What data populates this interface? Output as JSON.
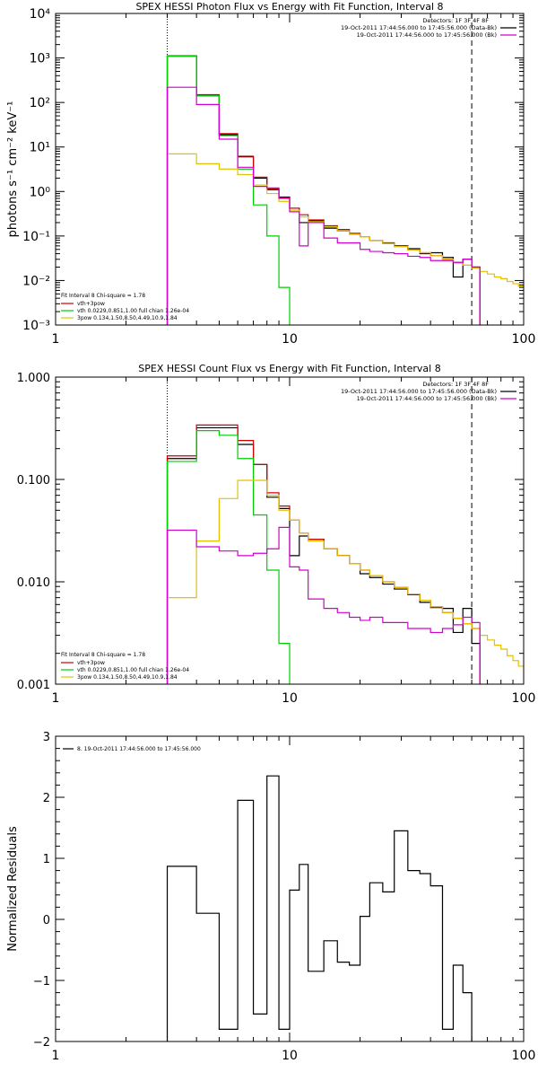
{
  "colors": {
    "black": "#000000",
    "red": "#d00000",
    "green": "#00cc00",
    "yellow": "#e6c000",
    "magenta": "#d000d0"
  },
  "chart_data": [
    {
      "type": "line",
      "title": "SPEX HESSI Photon Flux vs Energy with Fit Function, Interval 8",
      "ylabel": "photons s⁻¹ cm⁻² keV⁻¹",
      "xlabel": "",
      "xscale": "log",
      "yscale": "log",
      "xlim": [
        1,
        100
      ],
      "ylim": [
        0.001,
        10000
      ],
      "xticks": [
        1,
        10,
        100
      ],
      "xtick_labels": [
        "1",
        "10",
        "100"
      ],
      "yticks": [
        0.001,
        0.01,
        0.1,
        1,
        10,
        100,
        1000,
        10000
      ],
      "ytick_labels": [
        "10⁻³",
        "10⁻²",
        "10⁻¹",
        "10⁰",
        "10¹",
        "10²",
        "10³",
        "10⁴"
      ],
      "vlines": [
        {
          "x": 3,
          "style": "dotted"
        },
        {
          "x": 60,
          "style": "dashed"
        }
      ],
      "legend_top": {
        "lines": [
          "Detectors: 1F 3F 4F 8F",
          "19-Oct-2011 17:44:56.000 to 17:45:56.000 (Data-Bk)",
          "19-Oct-2011 17:44:56.000 to 17:45:56.000 (Bk)"
        ],
        "colors": [
          "",
          "#000000",
          "#d000d0"
        ]
      },
      "legend_bottom": {
        "header": "Fit Interval  8    Chi-square = 1.78",
        "items": [
          {
            "label": "vth+3pow",
            "color": "#d00000"
          },
          {
            "label": "vth 0.0229,0.851,1.00  full chian 1.26e-04",
            "color": "#00cc00"
          },
          {
            "label": "3pow 0.134,1.50,8.50,4.49,10.9,1.84",
            "color": "#e6c000"
          }
        ]
      },
      "edges": [
        3,
        4,
        5,
        6,
        7,
        8,
        9,
        10,
        11,
        12,
        14,
        16,
        18,
        20,
        22,
        25,
        28,
        32,
        36,
        40,
        45,
        50,
        55,
        60,
        65,
        70,
        75,
        80,
        85,
        90,
        95,
        100
      ],
      "series": [
        {
          "name": "Data-Bk",
          "color": "#000000",
          "stop_at": 60,
          "floor_at_end": true,
          "values": [
            1100,
            140,
            19,
            6.0,
            2.0,
            1.1,
            0.75,
            0.42,
            0.2,
            0.22,
            0.15,
            0.13,
            0.11,
            0.095,
            0.08,
            0.07,
            0.06,
            0.052,
            0.04,
            0.042,
            0.033,
            0.012,
            0.03,
            0.02
          ]
        },
        {
          "name": "vth+3pow",
          "color": "#d00000",
          "stop_at": 60,
          "floor_at_end": true,
          "values": [
            1120,
            150,
            20,
            6.2,
            2.1,
            1.15,
            0.72,
            0.42,
            0.3,
            0.23,
            0.17,
            0.14,
            0.115,
            0.095,
            0.08,
            0.068,
            0.058,
            0.049,
            0.042,
            0.036,
            0.03,
            0.026,
            0.022,
            0.02
          ]
        },
        {
          "name": "vth",
          "color": "#00cc00",
          "stop_at": 10,
          "values": [
            1100,
            140,
            18,
            3.2,
            0.5,
            0.1,
            0.007,
            0.0001
          ]
        },
        {
          "name": "3pow",
          "color": "#e6c000",
          "stop_at": 100,
          "floor_at_start": true,
          "values": [
            7.0,
            4.2,
            3.2,
            2.4,
            1.4,
            0.9,
            0.6,
            0.38,
            0.27,
            0.21,
            0.16,
            0.13,
            0.11,
            0.095,
            0.08,
            0.068,
            0.058,
            0.049,
            0.042,
            0.036,
            0.03,
            0.026,
            0.022,
            0.019,
            0.016,
            0.014,
            0.012,
            0.011,
            0.0095,
            0.0085,
            0.0075
          ]
        },
        {
          "name": "Bk",
          "color": "#d000d0",
          "stop_at": 60,
          "floor_at_end": true,
          "values": [
            220,
            90,
            15,
            3.5,
            1.3,
            1.2,
            0.7,
            0.35,
            0.06,
            0.2,
            0.09,
            0.07,
            0.07,
            0.05,
            0.045,
            0.042,
            0.04,
            0.035,
            0.033,
            0.028,
            0.028,
            0.025,
            0.03,
            0.02
          ]
        }
      ]
    },
    {
      "type": "line",
      "title": "SPEX HESSI Count Flux vs Energy with Fit Function, Interval 8",
      "ylabel": "",
      "xlabel": "",
      "xscale": "log",
      "yscale": "log",
      "xlim": [
        1,
        100
      ],
      "ylim": [
        0.001,
        1.0
      ],
      "xticks": [
        1,
        10,
        100
      ],
      "xtick_labels": [
        "1",
        "10",
        "100"
      ],
      "yticks": [
        0.001,
        0.01,
        0.1,
        1.0
      ],
      "ytick_labels": [
        "0.001",
        "0.010",
        "0.100",
        "1.000"
      ],
      "vlines": [
        {
          "x": 3,
          "style": "dotted"
        },
        {
          "x": 60,
          "style": "dashed"
        }
      ],
      "legend_top": {
        "lines": [
          "Detectors: 1F 3F 4F 8F",
          "19-Oct-2011 17:44:56.000 to 17:45:56.000 (Data-Bk)",
          "19-Oct-2011 17:44:56.000 to 17:45:56.000 (Bk)"
        ],
        "colors": [
          "",
          "#000000",
          "#d000d0"
        ]
      },
      "legend_bottom": {
        "header": "Fit Interval  8    Chi-square = 1.78",
        "items": [
          {
            "label": "vth+3pow",
            "color": "#d00000"
          },
          {
            "label": "vth 0.0229,0.851,1.00  full chian 1.26e-04",
            "color": "#00cc00"
          },
          {
            "label": "3pow 0.134,1.50,8.50,4.49,10.9,1.84",
            "color": "#e6c000"
          }
        ]
      },
      "edges": [
        3,
        4,
        5,
        6,
        7,
        8,
        9,
        10,
        11,
        12,
        14,
        16,
        18,
        20,
        22,
        25,
        28,
        32,
        36,
        40,
        45,
        50,
        55,
        60,
        65,
        70,
        75,
        80,
        85,
        90,
        95,
        100
      ],
      "series": [
        {
          "name": "Data-Bk",
          "color": "#000000",
          "stop_at": 60,
          "floor_at_end": true,
          "values": [
            0.16,
            0.32,
            0.32,
            0.22,
            0.14,
            0.067,
            0.052,
            0.018,
            0.028,
            0.026,
            0.021,
            0.018,
            0.015,
            0.012,
            0.011,
            0.0095,
            0.0085,
            0.0075,
            0.0063,
            0.0056,
            0.0055,
            0.0032,
            0.0055,
            0.0025
          ]
        },
        {
          "name": "vth+3pow",
          "color": "#d00000",
          "stop_at": 60,
          "floor_at_end": true,
          "values": [
            0.17,
            0.34,
            0.34,
            0.24,
            0.14,
            0.074,
            0.055,
            0.04,
            0.03,
            0.026,
            0.021,
            0.018,
            0.015,
            0.013,
            0.0115,
            0.01,
            0.0088,
            0.0076,
            0.0066,
            0.0057,
            0.005,
            0.0044,
            0.0039,
            0.0035
          ]
        },
        {
          "name": "vth",
          "color": "#00cc00",
          "stop_at": 10,
          "values": [
            0.15,
            0.3,
            0.27,
            0.16,
            0.045,
            0.013,
            0.0025,
            0.0001
          ]
        },
        {
          "name": "3pow",
          "color": "#e6c000",
          "stop_at": 100,
          "floor_at_start": true,
          "values": [
            0.007,
            0.025,
            0.065,
            0.098,
            0.098,
            0.07,
            0.05,
            0.04,
            0.03,
            0.025,
            0.021,
            0.018,
            0.015,
            0.013,
            0.0115,
            0.01,
            0.0088,
            0.0076,
            0.0066,
            0.0057,
            0.005,
            0.0044,
            0.0039,
            0.0035,
            0.003,
            0.0027,
            0.0024,
            0.0022,
            0.0019,
            0.0017,
            0.0015
          ]
        },
        {
          "name": "Bk",
          "color": "#d000d0",
          "stop_at": 60,
          "floor_at_end": true,
          "values": [
            0.032,
            0.022,
            0.02,
            0.018,
            0.019,
            0.021,
            0.034,
            0.014,
            0.013,
            0.0068,
            0.0055,
            0.005,
            0.0045,
            0.0042,
            0.0045,
            0.004,
            0.004,
            0.0035,
            0.0035,
            0.0032,
            0.0035,
            0.0038,
            0.0045,
            0.004
          ]
        }
      ]
    },
    {
      "type": "line",
      "title": "",
      "ylabel": "Normalized Residuals",
      "xlabel": "",
      "xscale": "log",
      "yscale": "linear",
      "xlim": [
        1,
        100
      ],
      "ylim": [
        -2,
        3
      ],
      "xticks": [
        1,
        10,
        100
      ],
      "xtick_labels": [
        "1",
        "10",
        "100"
      ],
      "yticks": [
        -2,
        -1,
        0,
        1,
        2,
        3
      ],
      "ytick_labels": [
        "−2",
        "−1",
        "0",
        "1",
        "2",
        "3"
      ],
      "legend": {
        "items": [
          {
            "label": "8. 19-Oct-2011 17:44:56.000 to 17:45:56.000",
            "color": "#000000"
          }
        ]
      },
      "edges": [
        3,
        4,
        5,
        6,
        7,
        8,
        9,
        10,
        11,
        12,
        14,
        16,
        18,
        20,
        22,
        25,
        28,
        32,
        36,
        40,
        45,
        50,
        55,
        60
      ],
      "series": [
        {
          "name": "",
          "color": "#000000",
          "stop_at": 60,
          "values": [
            0.87,
            0.1,
            -1.8,
            1.95,
            -1.55,
            2.35,
            -1.8,
            0.48,
            0.9,
            -0.85,
            -0.35,
            -0.7,
            -0.75,
            0.05,
            0.6,
            0.45,
            1.45,
            0.8,
            0.75,
            0.55,
            -1.8,
            -0.75,
            -1.2
          ]
        }
      ]
    }
  ]
}
